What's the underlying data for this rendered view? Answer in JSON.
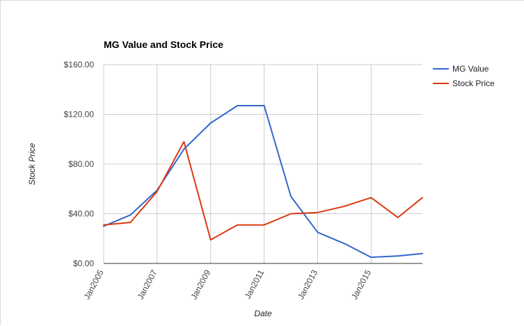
{
  "chart_data": {
    "type": "line",
    "title": "MG Value and Stock Price",
    "xlabel": "Date",
    "ylabel": "Stock Price",
    "x_tick_labels": [
      "Jan2005",
      "Jan2007",
      "Jan2009",
      "Jan2011",
      "Jan2013",
      "Jan2015"
    ],
    "y_tick_labels": [
      "$0.00",
      "$40.00",
      "$80.00",
      "$120.00",
      "$160.00"
    ],
    "y_ticks": [
      0,
      40,
      80,
      120,
      160
    ],
    "ylim": [
      0,
      160
    ],
    "x": [
      "2005-01",
      "2006-01",
      "2007-01",
      "2008-01",
      "2009-01",
      "2010-01",
      "2011-01",
      "2012-01",
      "2013-01",
      "2014-01",
      "2015-01",
      "2016-01",
      "2016-12"
    ],
    "series": [
      {
        "name": "MG Value",
        "color": "#3366cc",
        "values": [
          30,
          39,
          59,
          92,
          113,
          127,
          127,
          54,
          25,
          16,
          5,
          6,
          8
        ]
      },
      {
        "name": "Stock Price",
        "color": "#dc3912",
        "values": [
          31,
          33,
          58,
          98,
          19,
          31,
          31,
          40,
          41,
          46,
          53,
          37,
          53
        ]
      }
    ],
    "grid": true,
    "legend": "right"
  }
}
